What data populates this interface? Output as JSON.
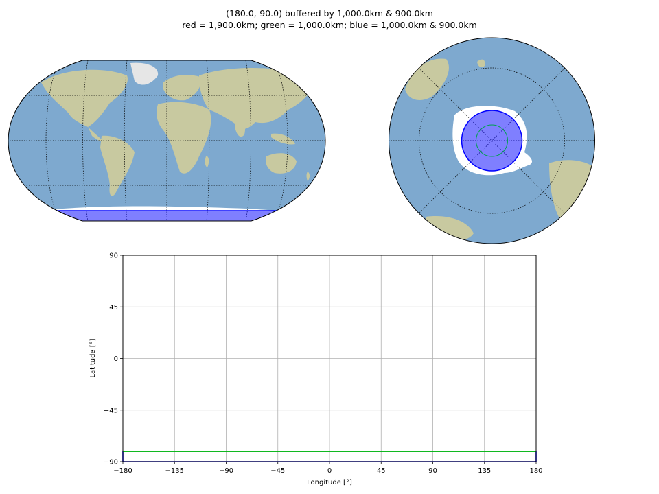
{
  "title_line1": "(180.0,-90.0) buffered by 1,000.0km & 900.0km",
  "title_line2": "red = 1,900.0km; green = 1,000.0km; blue = 1,000.0km & 900.0km",
  "colors": {
    "ocean": "#7ea9cf",
    "land": "#c8c9a0",
    "ice": "#ffffff",
    "blue": "#0000ff",
    "green": "#00c000",
    "grid": "#b0b0b0"
  },
  "chart_data": [
    {
      "type": "map",
      "projection": "Robinson",
      "features": [
        "blue buffer band along southern edge (-90 to about -81 latitude)"
      ],
      "graticule": "dotted"
    },
    {
      "type": "map",
      "projection": "South polar orthographic",
      "features": [
        "blue disc centred on the South Pole",
        "green circle inside"
      ],
      "graticule": "dotted"
    },
    {
      "type": "line",
      "xlabel": "Longitude [°]",
      "ylabel": "Latitude [°]",
      "xlim": [
        -180,
        180
      ],
      "ylim": [
        -90,
        90
      ],
      "xticks": [
        "−180",
        "−135",
        "−90",
        "−45",
        "0",
        "45",
        "90",
        "135",
        "180"
      ],
      "yticks": [
        "−90",
        "−45",
        "0",
        "45",
        "90"
      ],
      "grid": true,
      "series": [
        {
          "color": "blue",
          "x": [
            -180,
            180,
            180,
            -180,
            -180
          ],
          "y": [
            -90,
            -90,
            -81.0,
            -81.0,
            -90
          ]
        },
        {
          "color": "green",
          "x": [
            -180,
            180
          ],
          "y": [
            -81.0,
            -81.0
          ]
        },
        {
          "color": "green",
          "x": [
            -180,
            180
          ],
          "y": [
            -81.0,
            -81.0
          ]
        }
      ]
    }
  ]
}
